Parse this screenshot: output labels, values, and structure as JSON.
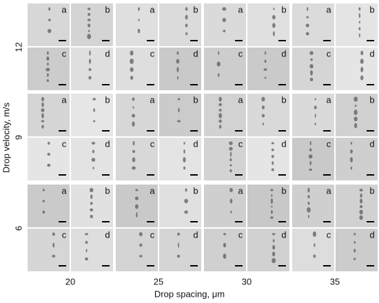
{
  "y_axis": {
    "label": "Drop velocity, m/s",
    "labels": [
      "12",
      "9",
      "6"
    ]
  },
  "x_axis": {
    "label": "Drop spacing, μm",
    "labels": [
      "20",
      "25",
      "30",
      "35"
    ]
  },
  "panel_labels": [
    "a",
    "b",
    "c",
    "d"
  ]
}
